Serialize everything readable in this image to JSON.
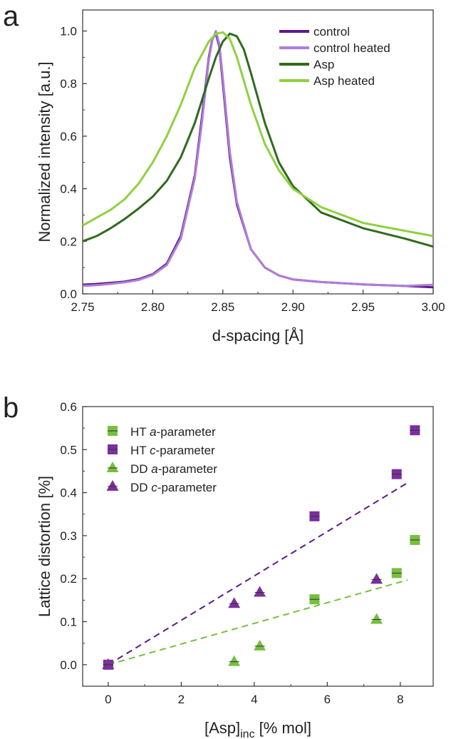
{
  "chart_data": [
    {
      "panel": "a",
      "type": "line",
      "xlabel": "d-spacing [Å]",
      "ylabel": "Normalized intensity [a.u.]",
      "xlim": [
        2.75,
        3.0
      ],
      "ylim": [
        0.0,
        1.08
      ],
      "xticks": [
        "2.75",
        "2.80",
        "2.85",
        "2.90",
        "2.95",
        "3.00"
      ],
      "yticks": [
        "0.0",
        "0.2",
        "0.4",
        "0.6",
        "0.8",
        "1.0"
      ],
      "grid": false,
      "legend_position": "top-right",
      "series": [
        {
          "name": "control",
          "color": "#5b1a8b",
          "x": [
            2.75,
            2.76,
            2.77,
            2.78,
            2.79,
            2.8,
            2.81,
            2.82,
            2.83,
            2.835,
            2.84,
            2.8425,
            2.845,
            2.8475,
            2.85,
            2.855,
            2.86,
            2.87,
            2.88,
            2.89,
            2.9,
            2.92,
            2.95,
            2.98,
            3.0
          ],
          "y": [
            0.035,
            0.038,
            0.042,
            0.047,
            0.056,
            0.075,
            0.115,
            0.22,
            0.45,
            0.67,
            0.9,
            0.97,
            0.99,
            0.94,
            0.8,
            0.52,
            0.34,
            0.17,
            0.1,
            0.07,
            0.055,
            0.045,
            0.036,
            0.03,
            0.025
          ]
        },
        {
          "name": "control heated",
          "color": "#b07cd8",
          "x": [
            2.75,
            2.76,
            2.77,
            2.78,
            2.79,
            2.8,
            2.81,
            2.82,
            2.83,
            2.835,
            2.84,
            2.8425,
            2.845,
            2.8475,
            2.85,
            2.855,
            2.86,
            2.87,
            2.88,
            2.89,
            2.9,
            2.92,
            2.95,
            2.98,
            3.0
          ],
          "y": [
            0.03,
            0.033,
            0.038,
            0.044,
            0.053,
            0.072,
            0.11,
            0.21,
            0.44,
            0.65,
            0.89,
            0.965,
            1.0,
            0.95,
            0.82,
            0.54,
            0.35,
            0.17,
            0.1,
            0.07,
            0.055,
            0.045,
            0.036,
            0.03,
            0.035
          ]
        },
        {
          "name": "Asp",
          "color": "#2e6b1e",
          "x": [
            2.75,
            2.76,
            2.77,
            2.78,
            2.79,
            2.8,
            2.81,
            2.82,
            2.83,
            2.84,
            2.845,
            2.85,
            2.855,
            2.86,
            2.865,
            2.87,
            2.88,
            2.89,
            2.9,
            2.92,
            2.95,
            2.98,
            3.0
          ],
          "y": [
            0.2,
            0.22,
            0.25,
            0.285,
            0.325,
            0.37,
            0.43,
            0.52,
            0.65,
            0.82,
            0.9,
            0.96,
            0.99,
            0.98,
            0.93,
            0.84,
            0.65,
            0.5,
            0.41,
            0.31,
            0.25,
            0.21,
            0.18
          ]
        },
        {
          "name": "Asp heated",
          "color": "#8fd13f",
          "x": [
            2.75,
            2.76,
            2.77,
            2.78,
            2.79,
            2.8,
            2.81,
            2.82,
            2.83,
            2.84,
            2.845,
            2.85,
            2.855,
            2.86,
            2.87,
            2.88,
            2.89,
            2.9,
            2.92,
            2.95,
            2.98,
            3.0
          ],
          "y": [
            0.26,
            0.29,
            0.32,
            0.36,
            0.42,
            0.5,
            0.6,
            0.72,
            0.86,
            0.96,
            0.99,
            0.995,
            0.97,
            0.9,
            0.72,
            0.57,
            0.47,
            0.4,
            0.33,
            0.27,
            0.24,
            0.22
          ]
        }
      ]
    },
    {
      "panel": "b",
      "type": "scatter",
      "xlabel_main": "[Asp]",
      "xlabel_sub": "inc",
      "xlabel_tail": " [% mol]",
      "ylabel": "Lattice distortion [%]",
      "xlim": [
        -0.7,
        8.9
      ],
      "ylim": [
        -0.05,
        0.6
      ],
      "xticks": [
        "0",
        "2",
        "4",
        "6",
        "8"
      ],
      "yticks": [
        "0.0",
        "0.1",
        "0.2",
        "0.3",
        "0.4",
        "0.5",
        "0.6"
      ],
      "grid": false,
      "legend_position": "top-left",
      "series": [
        {
          "name_pre": "HT ",
          "name_em": "a",
          "name_post": "-parameter",
          "marker": "square",
          "color": "#76bf3f",
          "x": [
            0,
            5.65,
            7.9,
            8.4
          ],
          "y": [
            0.0,
            0.152,
            0.213,
            0.29
          ]
        },
        {
          "name_pre": "HT ",
          "name_em": "c",
          "name_post": "-parameter",
          "marker": "square",
          "color": "#7b2f9e",
          "x": [
            0,
            5.65,
            7.9,
            8.4
          ],
          "y": [
            0.0,
            0.345,
            0.443,
            0.545
          ]
        },
        {
          "name_pre": "DD ",
          "name_em": "a",
          "name_post": "-parameter",
          "marker": "triangle",
          "color": "#76bf3f",
          "x": [
            0,
            3.45,
            4.15,
            7.35
          ],
          "y": [
            0.0,
            0.007,
            0.043,
            0.105
          ]
        },
        {
          "name_pre": "DD ",
          "name_em": "c",
          "name_post": "-parameter",
          "marker": "triangle",
          "color": "#7b2f9e",
          "x": [
            0,
            3.45,
            4.15,
            7.35
          ],
          "y": [
            0.0,
            0.142,
            0.168,
            0.198
          ]
        }
      ],
      "fits": [
        {
          "of": "a-parameter",
          "color": "#76bf3f",
          "x": [
            0,
            8.2
          ],
          "y": [
            0.0,
            0.197
          ]
        },
        {
          "of": "c-parameter",
          "color": "#5b1a8b",
          "x": [
            0,
            8.2
          ],
          "y": [
            0.0,
            0.423
          ]
        }
      ]
    }
  ],
  "labels": {
    "panel_a": "a",
    "panel_b": "b"
  }
}
